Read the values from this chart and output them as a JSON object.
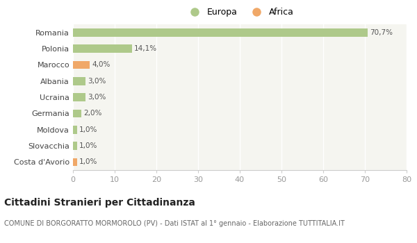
{
  "categories": [
    "Romania",
    "Polonia",
    "Marocco",
    "Albania",
    "Ucraina",
    "Germania",
    "Moldova",
    "Slovacchia",
    "Costa d'Avorio"
  ],
  "values": [
    70.7,
    14.1,
    4.0,
    3.0,
    3.0,
    2.0,
    1.0,
    1.0,
    1.0
  ],
  "labels": [
    "70,7%",
    "14,1%",
    "4,0%",
    "3,0%",
    "3,0%",
    "2,0%",
    "1,0%",
    "1,0%",
    "1,0%"
  ],
  "colors": [
    "#aec98a",
    "#aec98a",
    "#f0a868",
    "#aec98a",
    "#aec98a",
    "#aec98a",
    "#aec98a",
    "#aec98a",
    "#f0a868"
  ],
  "legend": [
    {
      "label": "Europa",
      "color": "#aec98a"
    },
    {
      "label": "Africa",
      "color": "#f0a868"
    }
  ],
  "xlim": [
    0,
    80
  ],
  "xticks": [
    0,
    10,
    20,
    30,
    40,
    50,
    60,
    70,
    80
  ],
  "title": "Cittadini Stranieri per Cittadinanza",
  "subtitle": "COMUNE DI BORGORATTO MORMOROLO (PV) - Dati ISTAT al 1° gennaio - Elaborazione TUTTITALIA.IT",
  "background_color": "#ffffff",
  "plot_bg_color": "#f5f5f0",
  "grid_color": "#ffffff",
  "bar_height": 0.5,
  "label_color": "#555555",
  "tick_color": "#999999"
}
